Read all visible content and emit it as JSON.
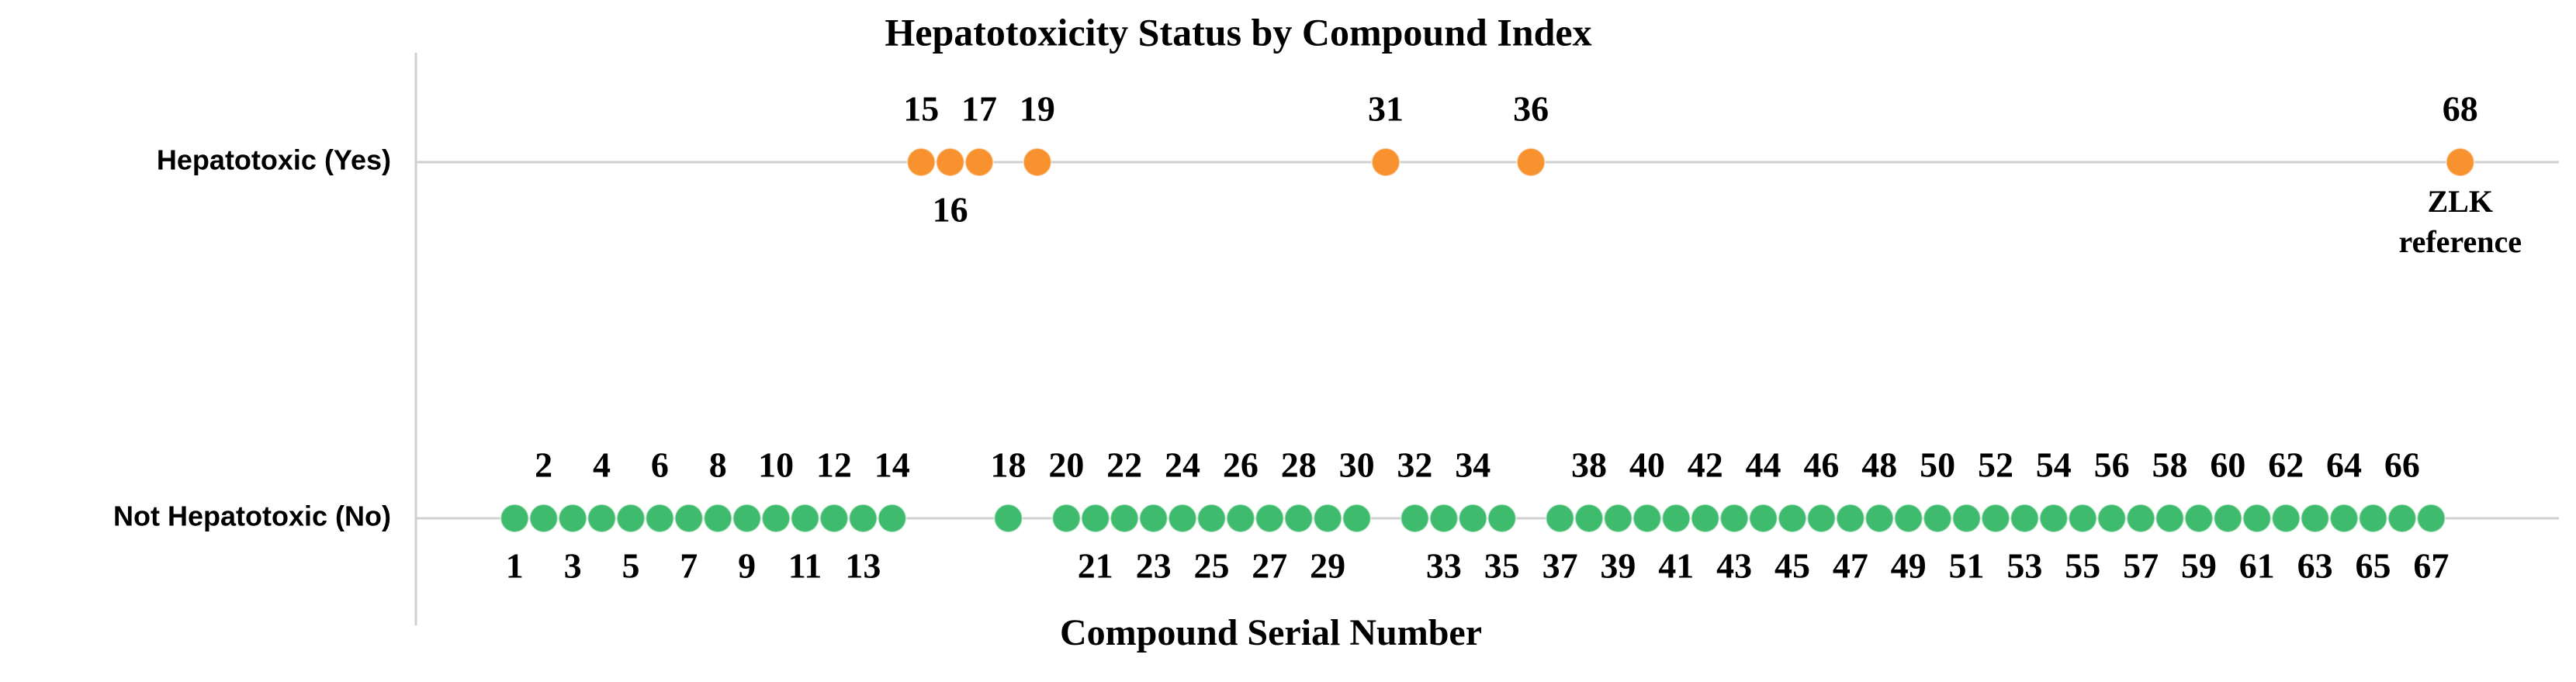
{
  "chart_data": {
    "type": "strip",
    "title": "Hepatotoxicity Status by Compound Index",
    "x_label": "Compound Serial Number",
    "y_categories": [
      "Not Hepatotoxic (No)",
      "Hepatotoxic (Yes)"
    ],
    "xlim": [
      -2.4,
      71.4
    ],
    "grid": true,
    "series": [
      {
        "color": "#f7922f",
        "x": [
          15,
          16,
          17,
          19,
          31,
          36,
          68
        ],
        "values": [
          "Hepatotoxic (Yes)",
          "Hepatotoxic (Yes)",
          "Hepatotoxic (Yes)",
          "Hepatotoxic (Yes)",
          "Hepatotoxic (Yes)",
          "Hepatotoxic (Yes)",
          "Hepatotoxic (Yes)"
        ]
      },
      {
        "color": "#3fbb6d",
        "x": [
          1,
          2,
          3,
          4,
          5,
          6,
          7,
          8,
          9,
          10,
          11,
          12,
          13,
          14,
          18,
          20,
          21,
          22,
          23,
          24,
          25,
          26,
          27,
          28,
          29,
          30,
          32,
          33,
          34,
          35,
          37,
          38,
          39,
          40,
          41,
          42,
          43,
          44,
          45,
          46,
          47,
          48,
          49,
          50,
          51,
          52,
          53,
          54,
          55,
          56,
          57,
          58,
          59,
          60,
          61,
          62,
          63,
          64,
          65,
          66,
          67
        ],
        "values": [
          "Not Hepatotoxic (No)",
          "Not Hepatotoxic (No)",
          "Not Hepatotoxic (No)",
          "Not Hepatotoxic (No)",
          "Not Hepatotoxic (No)",
          "Not Hepatotoxic (No)",
          "Not Hepatotoxic (No)",
          "Not Hepatotoxic (No)",
          "Not Hepatotoxic (No)",
          "Not Hepatotoxic (No)",
          "Not Hepatotoxic (No)",
          "Not Hepatotoxic (No)",
          "Not Hepatotoxic (No)",
          "Not Hepatotoxic (No)",
          "Not Hepatotoxic (No)",
          "Not Hepatotoxic (No)",
          "Not Hepatotoxic (No)",
          "Not Hepatotoxic (No)",
          "Not Hepatotoxic (No)",
          "Not Hepatotoxic (No)",
          "Not Hepatotoxic (No)",
          "Not Hepatotoxic (No)",
          "Not Hepatotoxic (No)",
          "Not Hepatotoxic (No)",
          "Not Hepatotoxic (No)",
          "Not Hepatotoxic (No)",
          "Not Hepatotoxic (No)",
          "Not Hepatotoxic (No)",
          "Not Hepatotoxic (No)",
          "Not Hepatotoxic (No)",
          "Not Hepatotoxic (No)",
          "Not Hepatotoxic (No)",
          "Not Hepatotoxic (No)",
          "Not Hepatotoxic (No)",
          "Not Hepatotoxic (No)",
          "Not Hepatotoxic (No)",
          "Not Hepatotoxic (No)",
          "Not Hepatotoxic (No)",
          "Not Hepatotoxic (No)",
          "Not Hepatotoxic (No)",
          "Not Hepatotoxic (No)",
          "Not Hepatotoxic (No)",
          "Not Hepatotoxic (No)",
          "Not Hepatotoxic (No)",
          "Not Hepatotoxic (No)",
          "Not Hepatotoxic (No)",
          "Not Hepatotoxic (No)",
          "Not Hepatotoxic (No)",
          "Not Hepatotoxic (No)",
          "Not Hepatotoxic (No)",
          "Not Hepatotoxic (No)",
          "Not Hepatotoxic (No)",
          "Not Hepatotoxic (No)",
          "Not Hepatotoxic (No)",
          "Not Hepatotoxic (No)",
          "Not Hepatotoxic (No)",
          "Not Hepatotoxic (No)",
          "Not Hepatotoxic (No)",
          "Not Hepatotoxic (No)",
          "Not Hepatotoxic (No)",
          "Not Hepatotoxic (No)"
        ]
      }
    ],
    "annotations": [
      {
        "x": 68,
        "y": "Hepatotoxic (Yes)",
        "lines": [
          "ZLK",
          "reference"
        ]
      }
    ]
  }
}
